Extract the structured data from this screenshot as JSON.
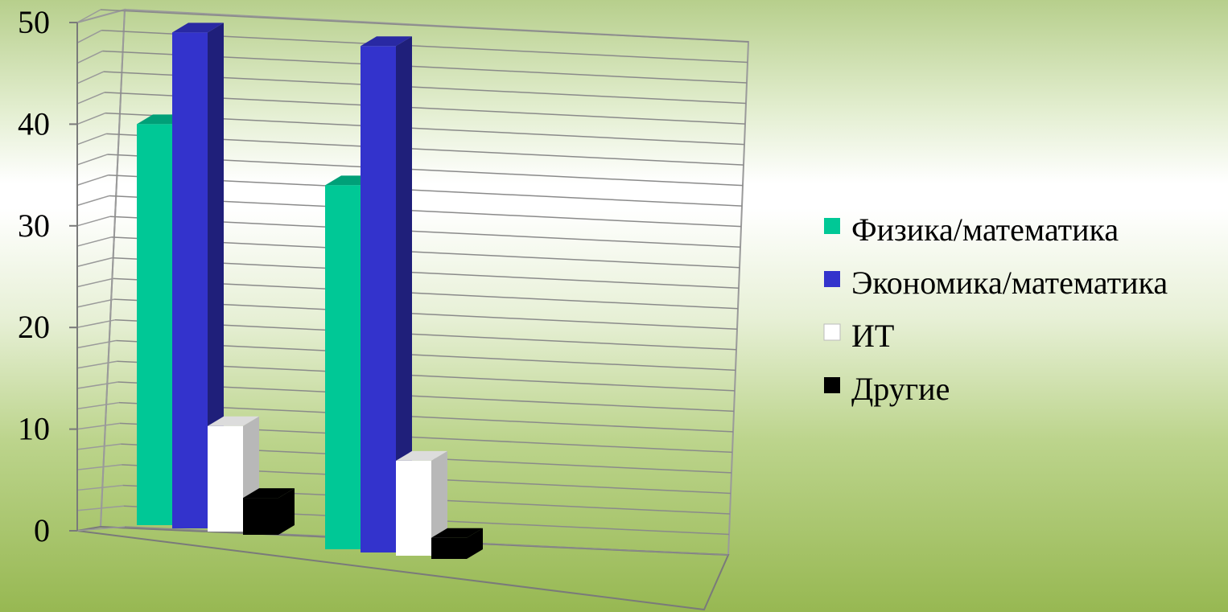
{
  "chart_data": {
    "type": "bar",
    "title": "",
    "xlabel": "",
    "ylabel": "",
    "categories": [
      "",
      ""
    ],
    "ylim": [
      0,
      50
    ],
    "yticks": [
      0,
      10,
      20,
      30,
      40,
      50
    ],
    "grid": true,
    "legend_position": "right",
    "series": [
      {
        "name": "Физика/математика",
        "color": "#00c896",
        "values": [
          38,
          34.5
        ]
      },
      {
        "name": "Экономика/математика",
        "color": "#3333cc",
        "values": [
          47,
          48
        ]
      },
      {
        "name": "ИТ",
        "color": "#ffffff",
        "values": [
          10,
          9
        ]
      },
      {
        "name": "Другие",
        "color": "#000000",
        "values": [
          3.5,
          2
        ]
      }
    ]
  }
}
